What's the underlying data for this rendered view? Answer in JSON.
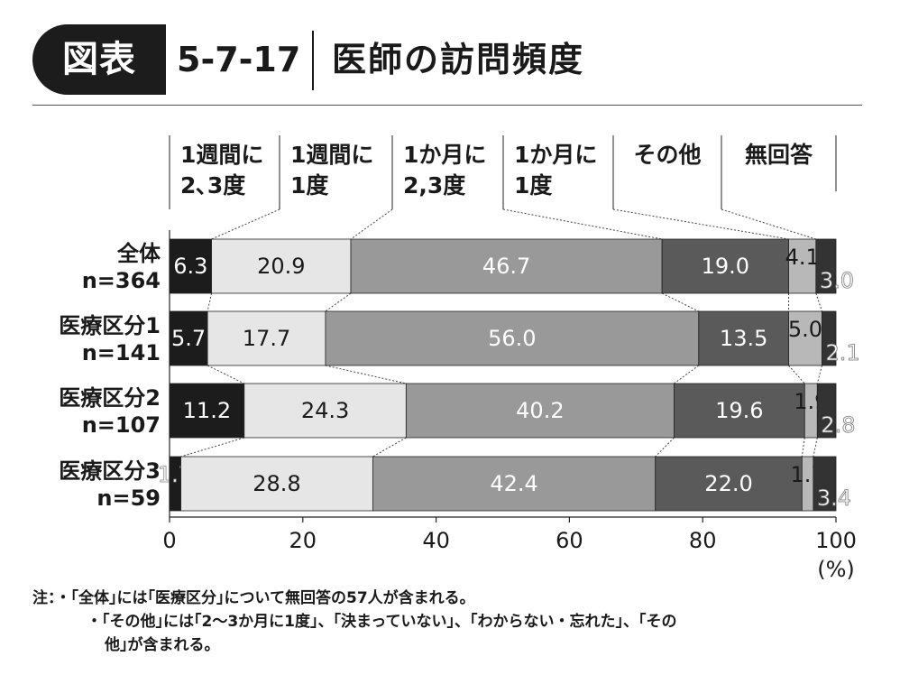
{
  "header": {
    "badge": "図表",
    "number": "5-7-17",
    "title": "医師の訪問頻度"
  },
  "chart_data": {
    "type": "bar",
    "orientation": "horizontal-stacked-100",
    "xlim": [
      0,
      100
    ],
    "xticks": [
      "0",
      "20",
      "40",
      "60",
      "80",
      "100"
    ],
    "unit_label": "(%)",
    "grid": false,
    "legend_position": "top",
    "series": [
      {
        "name": "1週間に\n2､3度",
        "color": "#1c1c1c",
        "values": [
          6.3,
          5.7,
          11.2,
          1.7
        ]
      },
      {
        "name": "1週間に\n1度",
        "color": "#e6e6e6",
        "values": [
          20.9,
          17.7,
          24.3,
          28.8
        ]
      },
      {
        "name": "1か月に\n2,3度",
        "color": "#999999",
        "values": [
          46.7,
          56.0,
          40.2,
          42.4
        ]
      },
      {
        "name": "1か月に\n1度",
        "color": "#5a5a5a",
        "values": [
          19.0,
          13.5,
          19.6,
          22.0
        ]
      },
      {
        "name": "その他",
        "color": "#b8b8b8",
        "values": [
          4.1,
          5.0,
          1.9,
          1.7
        ]
      },
      {
        "name": "無回答",
        "color": "#333333",
        "values": [
          3.0,
          2.1,
          2.8,
          3.4
        ]
      }
    ],
    "categories": [
      {
        "name": "全体",
        "n": "n=364"
      },
      {
        "name": "医療区分1",
        "n": "n=141"
      },
      {
        "name": "医療区分2",
        "n": "n=107"
      },
      {
        "name": "医療区分3",
        "n": "n=59"
      }
    ]
  },
  "notes": {
    "line1": "注：・｢全体｣には｢医療区分｣について無回答の57人が含まれる。",
    "line2": "・｢その他｣には｢2〜3か月に1度｣、｢決まっていない｣、｢わからない・忘れた｣、｢その",
    "line3": "他｣が含まれる。"
  }
}
